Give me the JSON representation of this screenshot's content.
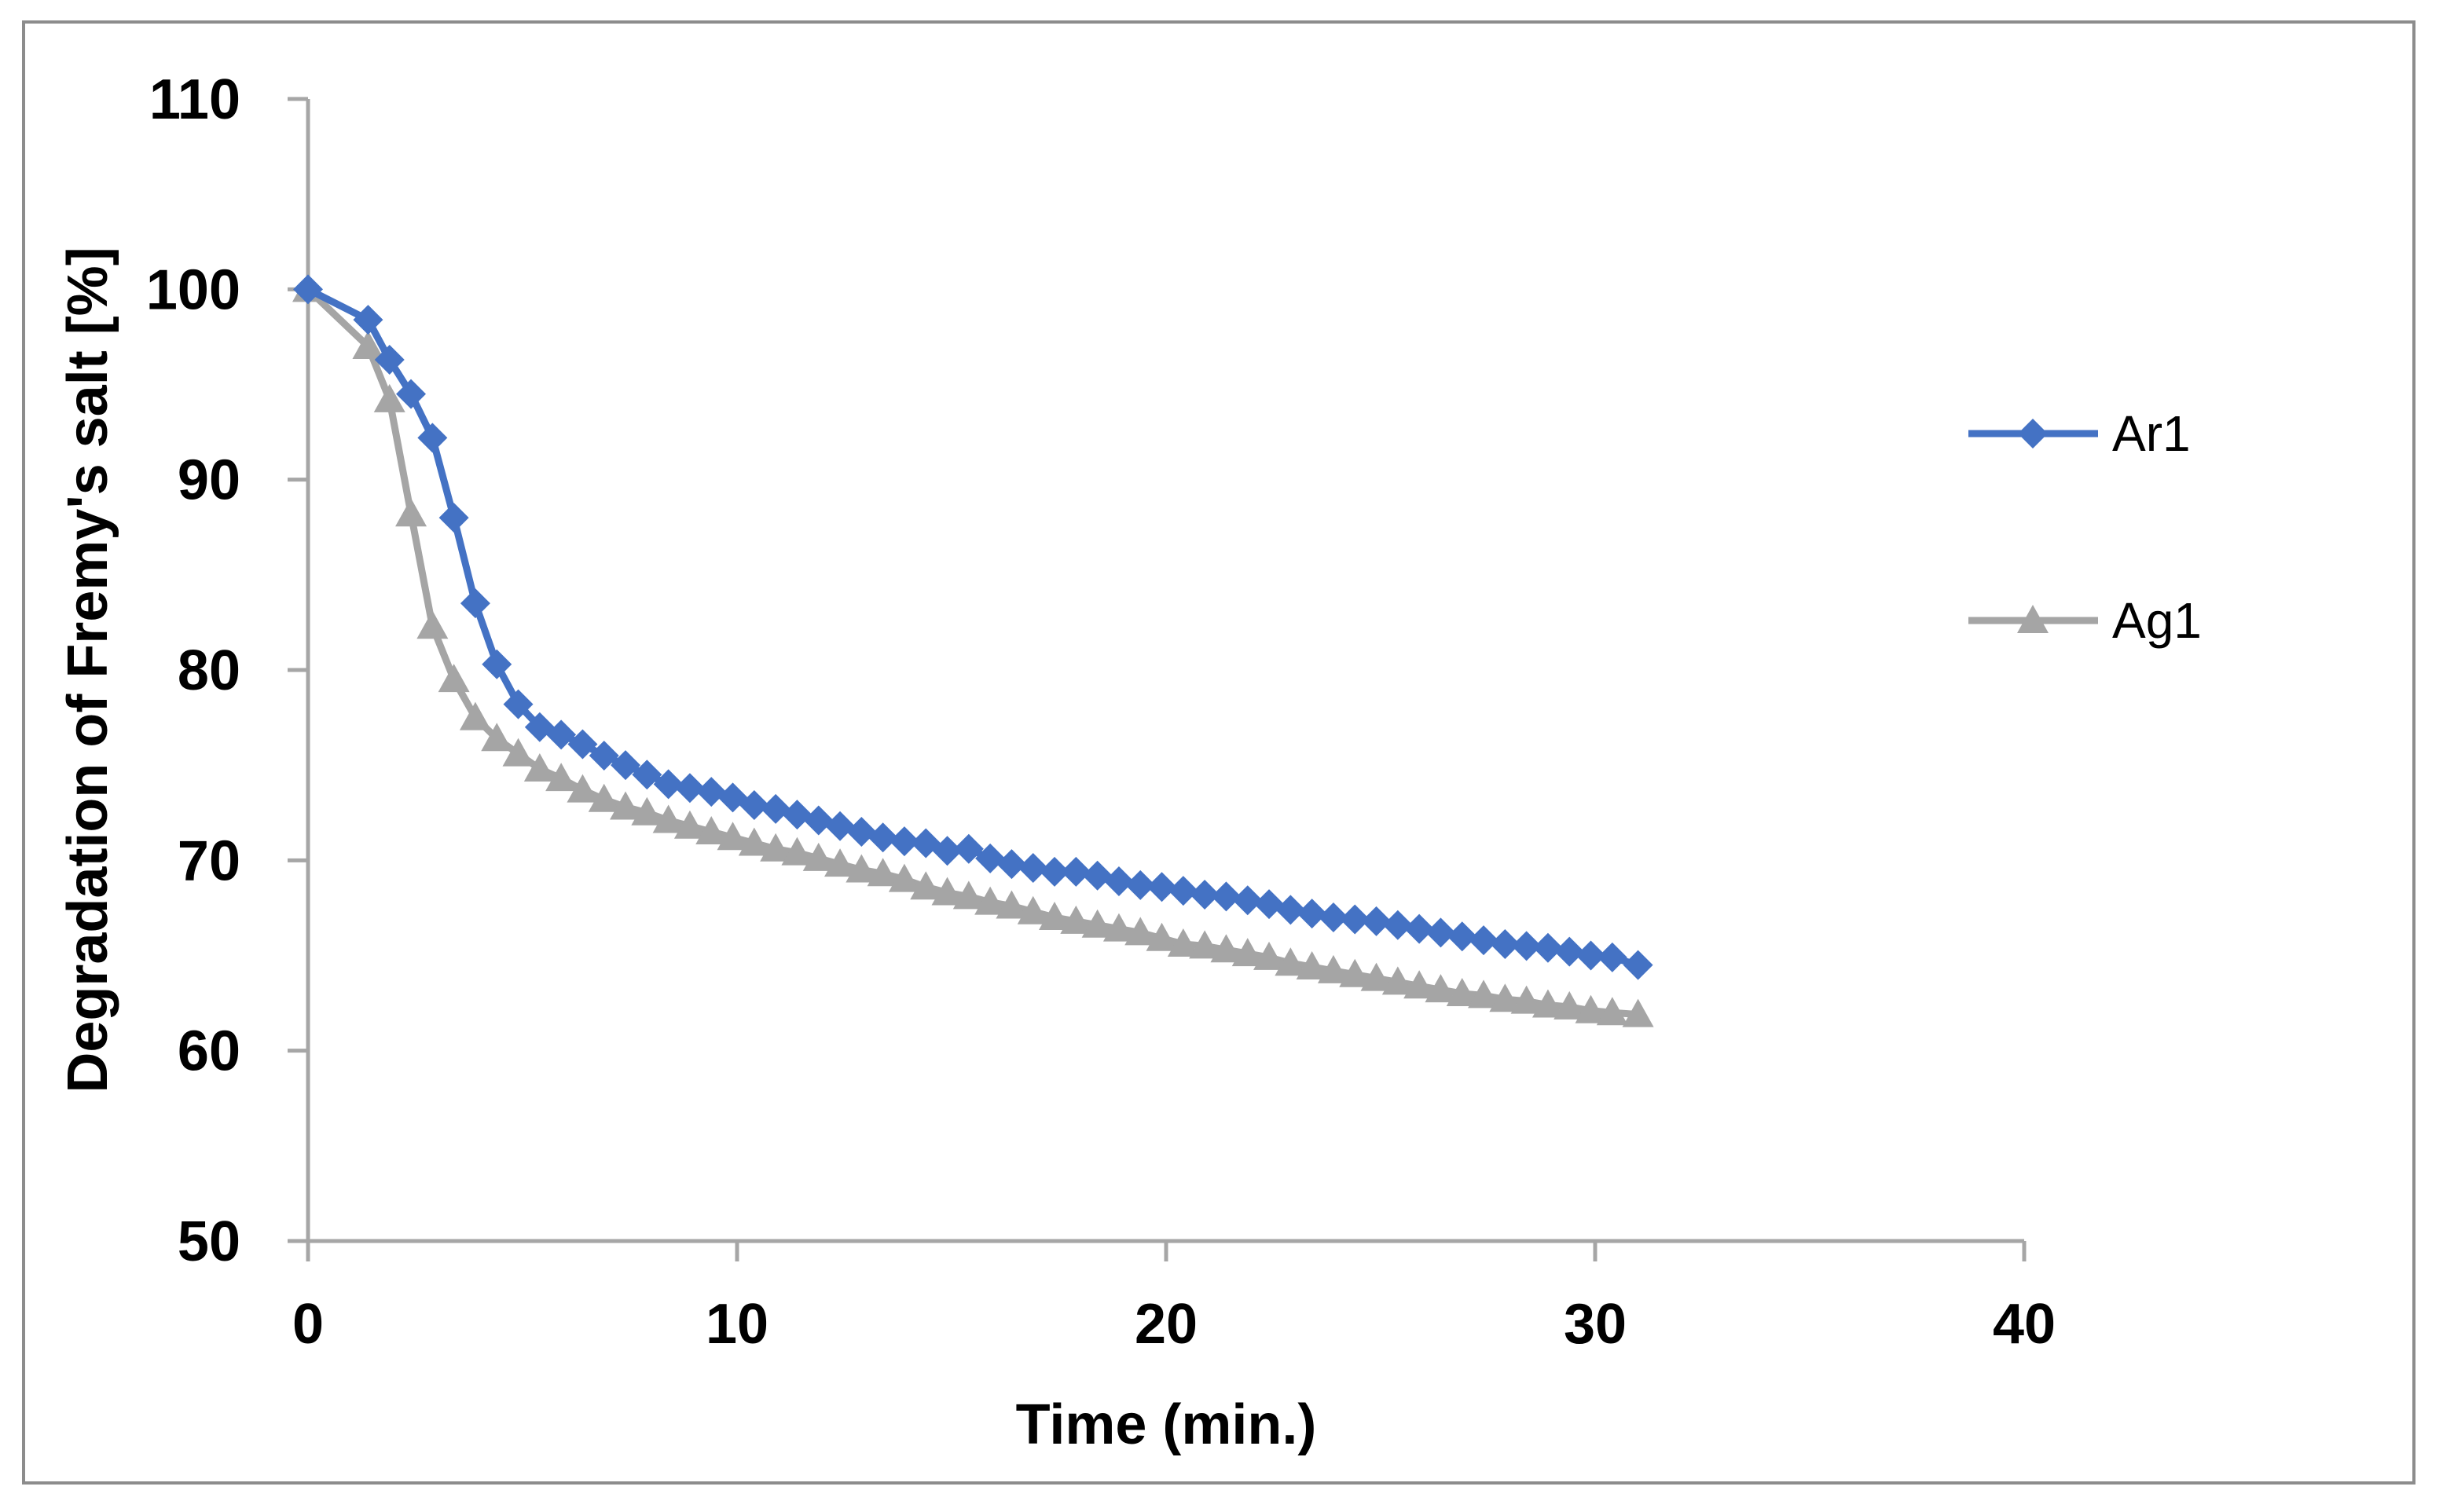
{
  "chart_data": {
    "type": "line",
    "title": "",
    "xlabel": "Time (min.)",
    "ylabel": "Degradation of Fremy's salt [%]",
    "xlim": [
      0,
      40
    ],
    "ylim": [
      50,
      110
    ],
    "xticks": [
      0,
      10,
      20,
      30,
      40
    ],
    "yticks": [
      50,
      60,
      70,
      80,
      90,
      100,
      110
    ],
    "grid": false,
    "legend_position": "right",
    "series": [
      {
        "name": "Ar1",
        "color": "#4472C4",
        "marker": "diamond",
        "x": [
          0,
          1.4,
          1.9,
          2.4,
          2.9,
          3.4,
          3.9,
          4.4,
          4.9,
          5.4,
          5.9,
          6.4,
          6.9,
          7.4,
          7.9,
          8.4,
          8.9,
          9.4,
          9.9,
          10.4,
          10.9,
          11.4,
          11.9,
          12.4,
          12.9,
          13.4,
          13.9,
          14.4,
          14.9,
          15.4,
          15.9,
          16.4,
          16.9,
          17.4,
          17.9,
          18.4,
          18.9,
          19.4,
          19.9,
          20.4,
          20.9,
          21.4,
          21.9,
          22.4,
          22.9,
          23.4,
          23.9,
          24.4,
          24.9,
          25.4,
          25.9,
          26.4,
          26.9,
          27.4,
          27.9,
          28.4,
          28.9,
          29.4,
          29.9,
          30.4,
          31.0
        ],
        "y": [
          100,
          98.4,
          96.3,
          94.5,
          92.2,
          88.0,
          83.5,
          80.3,
          78.2,
          77.0,
          76.6,
          76.1,
          75.5,
          75.0,
          74.5,
          74.0,
          73.8,
          73.6,
          73.3,
          72.9,
          72.7,
          72.4,
          72.1,
          71.8,
          71.5,
          71.2,
          71.0,
          70.9,
          70.5,
          70.6,
          70.1,
          69.8,
          69.6,
          69.4,
          69.4,
          69.2,
          68.9,
          68.7,
          68.6,
          68.4,
          68.2,
          68.1,
          67.9,
          67.7,
          67.4,
          67.2,
          67.0,
          66.9,
          66.8,
          66.6,
          66.4,
          66.2,
          66.0,
          65.8,
          65.6,
          65.5,
          65.4,
          65.2,
          65.0,
          64.9,
          64.5
        ]
      },
      {
        "name": "Ag1",
        "color": "#A5A5A5",
        "marker": "triangle",
        "x": [
          0,
          1.4,
          1.9,
          2.4,
          2.9,
          3.4,
          3.9,
          4.4,
          4.9,
          5.4,
          5.9,
          6.4,
          6.9,
          7.4,
          7.9,
          8.4,
          8.9,
          9.4,
          9.9,
          10.4,
          10.9,
          11.4,
          11.9,
          12.4,
          12.9,
          13.4,
          13.9,
          14.4,
          14.9,
          15.4,
          15.9,
          16.4,
          16.9,
          17.4,
          17.9,
          18.4,
          18.9,
          19.4,
          19.9,
          20.4,
          20.9,
          21.4,
          21.9,
          22.4,
          22.9,
          23.4,
          23.9,
          24.4,
          24.9,
          25.4,
          25.9,
          26.4,
          26.9,
          27.4,
          27.9,
          28.4,
          28.9,
          29.4,
          29.9,
          30.4,
          31.0
        ],
        "y": [
          100,
          97.0,
          94.2,
          88.2,
          82.3,
          79.5,
          77.5,
          76.4,
          75.6,
          74.8,
          74.3,
          73.7,
          73.2,
          72.8,
          72.5,
          72.1,
          71.8,
          71.5,
          71.2,
          70.9,
          70.6,
          70.4,
          70.1,
          69.8,
          69.5,
          69.3,
          69.0,
          68.6,
          68.3,
          68.1,
          67.8,
          67.6,
          67.3,
          67.0,
          66.8,
          66.6,
          66.4,
          66.2,
          65.9,
          65.6,
          65.5,
          65.3,
          65.1,
          64.9,
          64.6,
          64.4,
          64.2,
          64.0,
          63.8,
          63.6,
          63.4,
          63.2,
          63.0,
          62.9,
          62.7,
          62.6,
          62.4,
          62.3,
          62.1,
          62.0,
          61.9
        ]
      }
    ]
  }
}
